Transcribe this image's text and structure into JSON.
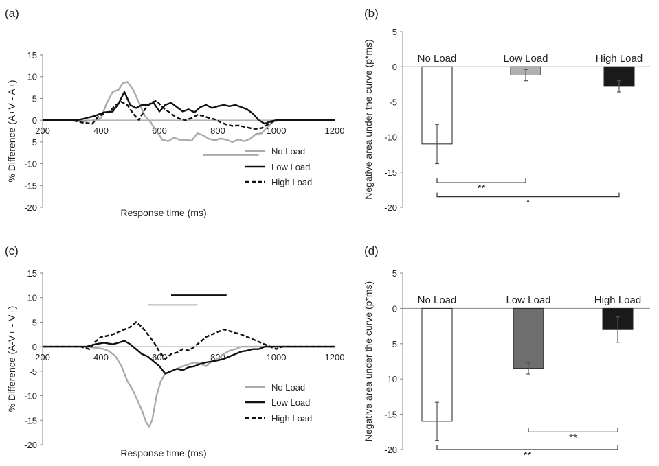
{
  "chart_data": [
    {
      "panel": "(a)",
      "type": "line",
      "xlabel": "Response time (ms)",
      "ylabel": "% Difference (A+V - A+)",
      "xlim": [
        200,
        1200
      ],
      "ylim": [
        -20,
        15
      ],
      "xticks": [
        "200",
        "400",
        "600",
        "800",
        "1000",
        "1200"
      ],
      "yticks": [
        "15",
        "10",
        "5",
        "0",
        "-5",
        "-10",
        "-15",
        "-20"
      ],
      "grid": false,
      "legend": "bottom-right",
      "series": [
        {
          "name": "No Load",
          "color": "#aaaaaa",
          "dash": "solid",
          "points": [
            [
              200,
              0
            ],
            [
              300,
              0
            ],
            [
              340,
              -0.3
            ],
            [
              380,
              0
            ],
            [
              400,
              0.5
            ],
            [
              420,
              4
            ],
            [
              440,
              6.5
            ],
            [
              460,
              7
            ],
            [
              475,
              8.5
            ],
            [
              490,
              8.8
            ],
            [
              510,
              7
            ],
            [
              530,
              4
            ],
            [
              550,
              1
            ],
            [
              570,
              -0.5
            ],
            [
              590,
              -2.5
            ],
            [
              610,
              -4.5
            ],
            [
              630,
              -4.8
            ],
            [
              650,
              -4
            ],
            [
              670,
              -4.5
            ],
            [
              690,
              -4.5
            ],
            [
              710,
              -4.7
            ],
            [
              730,
              -3
            ],
            [
              750,
              -3.5
            ],
            [
              770,
              -4.3
            ],
            [
              790,
              -4.6
            ],
            [
              810,
              -4.2
            ],
            [
              830,
              -4.5
            ],
            [
              850,
              -5
            ],
            [
              870,
              -4.4
            ],
            [
              890,
              -4.8
            ],
            [
              910,
              -4.3
            ],
            [
              930,
              -3.2
            ],
            [
              950,
              -3
            ],
            [
              970,
              -1.5
            ],
            [
              990,
              -0.3
            ],
            [
              1010,
              0
            ],
            [
              1100,
              0
            ],
            [
              1200,
              0
            ]
          ]
        },
        {
          "name": "Low Load",
          "color": "#111111",
          "dash": "solid",
          "points": [
            [
              200,
              0
            ],
            [
              320,
              0
            ],
            [
              350,
              0.5
            ],
            [
              380,
              1
            ],
            [
              410,
              1.8
            ],
            [
              440,
              2
            ],
            [
              460,
              3.8
            ],
            [
              480,
              6.5
            ],
            [
              500,
              3.5
            ],
            [
              520,
              2.8
            ],
            [
              540,
              3.5
            ],
            [
              560,
              3.5
            ],
            [
              580,
              4
            ],
            [
              600,
              2
            ],
            [
              620,
              3.5
            ],
            [
              640,
              4
            ],
            [
              660,
              3
            ],
            [
              680,
              2
            ],
            [
              700,
              2.5
            ],
            [
              720,
              1.8
            ],
            [
              740,
              3
            ],
            [
              760,
              3.5
            ],
            [
              780,
              2.8
            ],
            [
              800,
              3.2
            ],
            [
              820,
              3.5
            ],
            [
              840,
              3.2
            ],
            [
              860,
              3.5
            ],
            [
              880,
              3
            ],
            [
              900,
              2.5
            ],
            [
              920,
              1.5
            ],
            [
              940,
              0
            ],
            [
              960,
              -0.8
            ],
            [
              980,
              -0.3
            ],
            [
              1000,
              0
            ],
            [
              1100,
              0
            ],
            [
              1200,
              0
            ]
          ]
        },
        {
          "name": "High Load",
          "color": "#111111",
          "dash": "dashed",
          "points": [
            [
              200,
              0
            ],
            [
              300,
              0
            ],
            [
              340,
              -0.6
            ],
            [
              370,
              -0.8
            ],
            [
              390,
              0.8
            ],
            [
              410,
              1.5
            ],
            [
              430,
              2
            ],
            [
              450,
              3.5
            ],
            [
              470,
              4.2
            ],
            [
              490,
              3.5
            ],
            [
              510,
              1.5
            ],
            [
              530,
              0
            ],
            [
              550,
              2.5
            ],
            [
              570,
              4
            ],
            [
              590,
              4.5
            ],
            [
              610,
              3
            ],
            [
              630,
              2
            ],
            [
              650,
              1
            ],
            [
              670,
              0.3
            ],
            [
              690,
              0
            ],
            [
              710,
              0.5
            ],
            [
              730,
              1.2
            ],
            [
              750,
              1
            ],
            [
              770,
              0.5
            ],
            [
              790,
              0.2
            ],
            [
              810,
              -0.5
            ],
            [
              830,
              -1
            ],
            [
              850,
              -1.3
            ],
            [
              870,
              -1.2
            ],
            [
              890,
              -1.5
            ],
            [
              910,
              -1.8
            ],
            [
              930,
              -2
            ],
            [
              950,
              -1.8
            ],
            [
              970,
              -1
            ],
            [
              990,
              -0.3
            ],
            [
              1010,
              0
            ],
            [
              1100,
              0
            ],
            [
              1200,
              0
            ]
          ]
        }
      ],
      "significance_bars": [
        {
          "color": "#aaaaaa",
          "x": [
            750,
            940
          ],
          "y": -8
        }
      ]
    },
    {
      "panel": "(b)",
      "type": "bar",
      "ylabel": "Negative area under the curve (p*ms)",
      "ylim": [
        -20,
        5
      ],
      "yticks": [
        "5",
        "0",
        "-5",
        "-10",
        "-15",
        "-20"
      ],
      "categories": [
        "No Load",
        "Low Load",
        "High Load"
      ],
      "values": [
        -11,
        -1.2,
        -2.8
      ],
      "errors": [
        2.8,
        0.8,
        0.8
      ],
      "colors": [
        "#ffffff",
        "#b0b0b0",
        "#1a1a1a"
      ],
      "significance": [
        {
          "from": 0,
          "to": 1,
          "y": -16.5,
          "label": "**"
        },
        {
          "from": 0,
          "to": 2,
          "y": -18.5,
          "label": "*"
        }
      ]
    },
    {
      "panel": "(c)",
      "type": "line",
      "xlabel": "Response time (ms)",
      "ylabel": "% Difference (A-V+ - V+)",
      "xlim": [
        200,
        1200
      ],
      "ylim": [
        -20,
        15
      ],
      "xticks": [
        "200",
        "400",
        "600",
        "800",
        "1000",
        "1200"
      ],
      "yticks": [
        "15",
        "10",
        "5",
        "0",
        "-5",
        "-10",
        "-15",
        "-20"
      ],
      "grid": false,
      "legend": "bottom-right",
      "series": [
        {
          "name": "No Load",
          "color": "#aaaaaa",
          "dash": "solid",
          "points": [
            [
              200,
              0
            ],
            [
              350,
              0
            ],
            [
              390,
              -0.3
            ],
            [
              410,
              -0.5
            ],
            [
              430,
              -1
            ],
            [
              450,
              -2
            ],
            [
              470,
              -4
            ],
            [
              490,
              -7
            ],
            [
              510,
              -9
            ],
            [
              525,
              -11
            ],
            [
              540,
              -13
            ],
            [
              555,
              -15.5
            ],
            [
              565,
              -16.3
            ],
            [
              575,
              -15
            ],
            [
              590,
              -10
            ],
            [
              605,
              -7
            ],
            [
              620,
              -5.5
            ],
            [
              640,
              -5
            ],
            [
              660,
              -4.5
            ],
            [
              680,
              -4
            ],
            [
              700,
              -3.6
            ],
            [
              720,
              -3.2
            ],
            [
              740,
              -3.5
            ],
            [
              760,
              -4
            ],
            [
              780,
              -3
            ],
            [
              800,
              -2.5
            ],
            [
              820,
              -1.5
            ],
            [
              840,
              -0.8
            ],
            [
              860,
              -0.5
            ],
            [
              880,
              0
            ],
            [
              1000,
              0
            ],
            [
              1200,
              0
            ]
          ]
        },
        {
          "name": "Low Load",
          "color": "#111111",
          "dash": "solid",
          "points": [
            [
              200,
              0
            ],
            [
              350,
              0
            ],
            [
              380,
              0.5
            ],
            [
              410,
              0.8
            ],
            [
              440,
              0.5
            ],
            [
              460,
              0.8
            ],
            [
              480,
              1.2
            ],
            [
              500,
              0.5
            ],
            [
              520,
              -0.5
            ],
            [
              540,
              -1.5
            ],
            [
              560,
              -2
            ],
            [
              580,
              -3
            ],
            [
              600,
              -4
            ],
            [
              620,
              -5.5
            ],
            [
              640,
              -5
            ],
            [
              660,
              -4.5
            ],
            [
              680,
              -4.8
            ],
            [
              700,
              -4.2
            ],
            [
              720,
              -4
            ],
            [
              740,
              -3.5
            ],
            [
              760,
              -3.2
            ],
            [
              780,
              -3
            ],
            [
              800,
              -2.8
            ],
            [
              820,
              -2.5
            ],
            [
              840,
              -2
            ],
            [
              860,
              -1.5
            ],
            [
              880,
              -1
            ],
            [
              900,
              -0.8
            ],
            [
              920,
              -0.5
            ],
            [
              940,
              -0.5
            ],
            [
              960,
              0
            ],
            [
              1200,
              0
            ]
          ]
        },
        {
          "name": "High Load",
          "color": "#111111",
          "dash": "dashed",
          "points": [
            [
              200,
              0
            ],
            [
              330,
              0
            ],
            [
              360,
              -0.5
            ],
            [
              380,
              1
            ],
            [
              400,
              2
            ],
            [
              420,
              2.2
            ],
            [
              440,
              2.5
            ],
            [
              460,
              3
            ],
            [
              480,
              3.5
            ],
            [
              500,
              4
            ],
            [
              520,
              5
            ],
            [
              540,
              4
            ],
            [
              560,
              2.5
            ],
            [
              580,
              1
            ],
            [
              600,
              -1
            ],
            [
              620,
              -2.5
            ],
            [
              640,
              -1.5
            ],
            [
              660,
              -1.2
            ],
            [
              680,
              -0.5
            ],
            [
              700,
              -0.8
            ],
            [
              720,
              0
            ],
            [
              740,
              1
            ],
            [
              760,
              2
            ],
            [
              780,
              2.5
            ],
            [
              800,
              3
            ],
            [
              820,
              3.5
            ],
            [
              840,
              3.2
            ],
            [
              860,
              2.8
            ],
            [
              880,
              2.5
            ],
            [
              900,
              2
            ],
            [
              920,
              1.5
            ],
            [
              940,
              1
            ],
            [
              960,
              0.5
            ],
            [
              980,
              0
            ],
            [
              1000,
              -0.5
            ],
            [
              1020,
              0
            ],
            [
              1200,
              0
            ]
          ]
        }
      ],
      "significance_bars": [
        {
          "color": "#aaaaaa",
          "x": [
            560,
            730
          ],
          "y": 8.5
        },
        {
          "color": "#111111",
          "x": [
            640,
            830
          ],
          "y": 10.5
        }
      ]
    },
    {
      "panel": "(d)",
      "type": "bar",
      "ylabel": "Negative area under the curve (p*ms)",
      "ylim": [
        -20,
        5
      ],
      "yticks": [
        "5",
        "0",
        "-5",
        "-10",
        "-15",
        "-20"
      ],
      "categories": [
        "No Load",
        "Low Load",
        "High Load"
      ],
      "values": [
        -16,
        -8.5,
        -3
      ],
      "errors": [
        2.7,
        0.8,
        1.8
      ],
      "colors": [
        "#ffffff",
        "#6e6e6e",
        "#1a1a1a"
      ],
      "significance": [
        {
          "from": 1,
          "to": 2,
          "y": -17.5,
          "label": "**"
        },
        {
          "from": 0,
          "to": 2,
          "y": -20,
          "label": "**"
        }
      ]
    }
  ]
}
